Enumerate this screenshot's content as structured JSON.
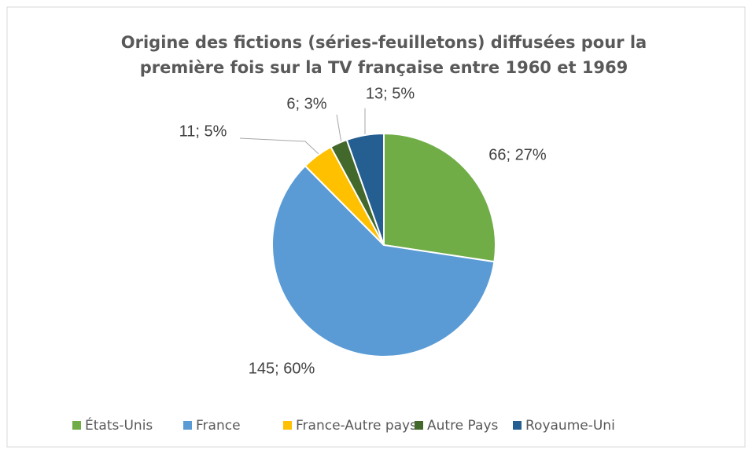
{
  "chart_data": {
    "type": "pie",
    "title": "Origine des fictions (séries-feuilletons) diffusées pour la première fois sur la TV française entre 1960 et 1969",
    "categories": [
      "États-Unis",
      "France",
      "France-Autre pays",
      "Autre Pays",
      "Royaume-Uni"
    ],
    "values": [
      66,
      145,
      11,
      6,
      13
    ],
    "value_labels": [
      "66; 27%",
      "145; 60%",
      "11; 5%",
      "6; 3%",
      "13; 5%"
    ],
    "colors": [
      "#70ad47",
      "#5b9bd5",
      "#ffc000",
      "#43682b",
      "#255e91"
    ],
    "legend": "bottom"
  }
}
